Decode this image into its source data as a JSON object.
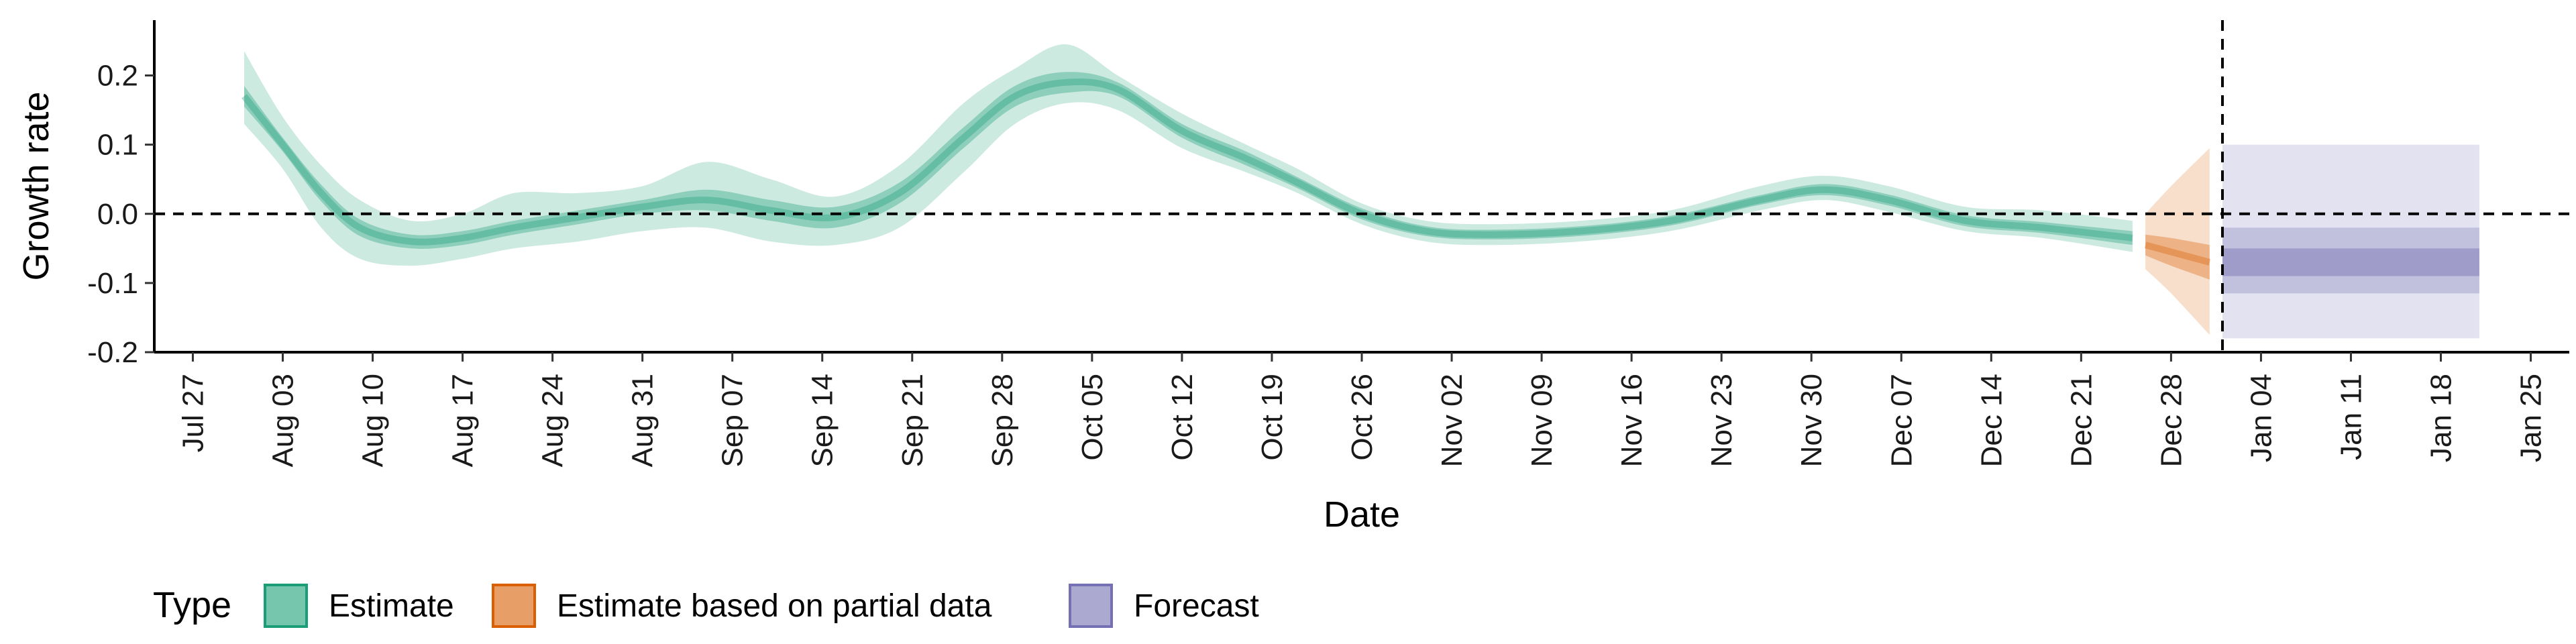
{
  "chart_data": {
    "type": "area",
    "xlabel": "Date",
    "ylabel": "Growth rate",
    "ylim": [
      -0.2,
      0.28
    ],
    "yticks": [
      -0.2,
      -0.1,
      0.0,
      0.1,
      0.2
    ],
    "ytick_labels": [
      "-0.2",
      "-0.1",
      "0.0",
      "0.1",
      "0.2"
    ],
    "xlim": [
      "2020-07-24",
      "2021-01-28"
    ],
    "xticks": [
      "2020-07-27",
      "2020-08-03",
      "2020-08-10",
      "2020-08-17",
      "2020-08-24",
      "2020-08-31",
      "2020-09-07",
      "2020-09-14",
      "2020-09-21",
      "2020-09-28",
      "2020-10-05",
      "2020-10-12",
      "2020-10-19",
      "2020-10-26",
      "2020-11-02",
      "2020-11-09",
      "2020-11-16",
      "2020-11-23",
      "2020-11-30",
      "2020-12-07",
      "2020-12-14",
      "2020-12-21",
      "2020-12-28",
      "2021-01-04",
      "2021-01-11",
      "2021-01-18",
      "2021-01-25"
    ],
    "xtick_labels": [
      "Jul 27",
      "Aug 03",
      "Aug 10",
      "Aug 17",
      "Aug 24",
      "Aug 31",
      "Sep 07",
      "Sep 14",
      "Sep 21",
      "Sep 28",
      "Oct 05",
      "Oct 12",
      "Oct 19",
      "Oct 26",
      "Nov 02",
      "Nov 09",
      "Nov 16",
      "Nov 23",
      "Nov 30",
      "Dec 07",
      "Dec 14",
      "Dec 21",
      "Dec 28",
      "Jan 04",
      "Jan 11",
      "Jan 18",
      "Jan 25"
    ],
    "reference_lines": {
      "horizontal_y": 0.0,
      "vertical_date": "2021-01-01"
    },
    "grid": false,
    "legend_position": "bottom-left",
    "legend_title": "Type",
    "series": [
      {
        "name": "Estimate",
        "color": "#1b9e77",
        "points": [
          {
            "date": "2020-07-31",
            "median": 0.17,
            "lo50": 0.155,
            "hi50": 0.185,
            "lo90": 0.13,
            "hi90": 0.235
          },
          {
            "date": "2020-08-03",
            "median": 0.1,
            "lo50": 0.09,
            "hi50": 0.11,
            "lo90": 0.065,
            "hi90": 0.14
          },
          {
            "date": "2020-08-06",
            "median": 0.03,
            "lo50": 0.018,
            "hi50": 0.042,
            "lo90": -0.02,
            "hi90": 0.07
          },
          {
            "date": "2020-08-09",
            "median": -0.02,
            "lo50": -0.032,
            "hi50": -0.008,
            "lo90": -0.065,
            "hi90": 0.02
          },
          {
            "date": "2020-08-13",
            "median": -0.04,
            "lo50": -0.05,
            "hi50": -0.03,
            "lo90": -0.075,
            "hi90": -0.01
          },
          {
            "date": "2020-08-17",
            "median": -0.035,
            "lo50": -0.045,
            "hi50": -0.025,
            "lo90": -0.065,
            "hi90": 0.0
          },
          {
            "date": "2020-08-21",
            "median": -0.02,
            "lo50": -0.03,
            "hi50": -0.01,
            "lo90": -0.05,
            "hi90": 0.03
          },
          {
            "date": "2020-08-26",
            "median": -0.005,
            "lo50": -0.015,
            "hi50": 0.005,
            "lo90": -0.04,
            "hi90": 0.03
          },
          {
            "date": "2020-08-31",
            "median": 0.01,
            "lo50": 0.0,
            "hi50": 0.02,
            "lo90": -0.025,
            "hi90": 0.04
          },
          {
            "date": "2020-09-05",
            "median": 0.02,
            "lo50": 0.005,
            "hi50": 0.035,
            "lo90": -0.02,
            "hi90": 0.075
          },
          {
            "date": "2020-09-10",
            "median": 0.005,
            "lo50": -0.01,
            "hi50": 0.02,
            "lo90": -0.04,
            "hi90": 0.05
          },
          {
            "date": "2020-09-15",
            "median": -0.005,
            "lo50": -0.02,
            "hi50": 0.01,
            "lo90": -0.045,
            "hi90": 0.025
          },
          {
            "date": "2020-09-20",
            "median": 0.03,
            "lo50": 0.015,
            "hi50": 0.045,
            "lo90": -0.02,
            "hi90": 0.07
          },
          {
            "date": "2020-09-25",
            "median": 0.11,
            "lo50": 0.095,
            "hi50": 0.125,
            "lo90": 0.06,
            "hi90": 0.16
          },
          {
            "date": "2020-09-29",
            "median": 0.17,
            "lo50": 0.155,
            "hi50": 0.185,
            "lo90": 0.13,
            "hi90": 0.21
          },
          {
            "date": "2020-10-03",
            "median": 0.19,
            "lo50": 0.175,
            "hi50": 0.205,
            "lo90": 0.16,
            "hi90": 0.245
          },
          {
            "date": "2020-10-07",
            "median": 0.18,
            "lo50": 0.17,
            "hi50": 0.19,
            "lo90": 0.15,
            "hi90": 0.2
          },
          {
            "date": "2020-10-12",
            "median": 0.12,
            "lo50": 0.11,
            "hi50": 0.13,
            "lo90": 0.095,
            "hi90": 0.145
          },
          {
            "date": "2020-10-17",
            "median": 0.08,
            "lo50": 0.07,
            "hi50": 0.09,
            "lo90": 0.06,
            "hi90": 0.1
          },
          {
            "date": "2020-10-21",
            "median": 0.045,
            "lo50": 0.037,
            "hi50": 0.053,
            "lo90": 0.03,
            "hi90": 0.065
          },
          {
            "date": "2020-10-26",
            "median": 0.0,
            "lo50": -0.008,
            "hi50": 0.008,
            "lo90": -0.015,
            "hi90": 0.015
          },
          {
            "date": "2020-10-31",
            "median": -0.025,
            "lo50": -0.032,
            "hi50": -0.018,
            "lo90": -0.04,
            "hi90": -0.01
          },
          {
            "date": "2020-11-05",
            "median": -0.03,
            "lo50": -0.037,
            "hi50": -0.023,
            "lo90": -0.045,
            "hi90": -0.015
          },
          {
            "date": "2020-11-12",
            "median": -0.025,
            "lo50": -0.032,
            "hi50": -0.018,
            "lo90": -0.04,
            "hi90": -0.01
          },
          {
            "date": "2020-11-19",
            "median": -0.01,
            "lo50": -0.017,
            "hi50": -0.003,
            "lo90": -0.025,
            "hi90": 0.005
          },
          {
            "date": "2020-11-26",
            "median": 0.02,
            "lo50": 0.013,
            "hi50": 0.027,
            "lo90": 0.005,
            "hi90": 0.04
          },
          {
            "date": "2020-12-01",
            "median": 0.035,
            "lo50": 0.027,
            "hi50": 0.043,
            "lo90": 0.02,
            "hi90": 0.055
          },
          {
            "date": "2020-12-06",
            "median": 0.02,
            "lo50": 0.012,
            "hi50": 0.028,
            "lo90": 0.003,
            "hi90": 0.04
          },
          {
            "date": "2020-12-12",
            "median": -0.01,
            "lo50": -0.018,
            "hi50": -0.002,
            "lo90": -0.025,
            "hi90": 0.01
          },
          {
            "date": "2020-12-18",
            "median": -0.02,
            "lo50": -0.028,
            "hi50": -0.012,
            "lo90": -0.035,
            "hi90": 0.005
          },
          {
            "date": "2020-12-25",
            "median": -0.035,
            "lo50": -0.045,
            "hi50": -0.025,
            "lo90": -0.055,
            "hi90": -0.01
          }
        ]
      },
      {
        "name": "Estimate based on partial data",
        "color": "#d95f02",
        "points": [
          {
            "date": "2020-12-26",
            "median": -0.045,
            "lo50": -0.06,
            "hi50": -0.03,
            "lo90": -0.08,
            "hi90": 0.0
          },
          {
            "date": "2020-12-28",
            "median": -0.055,
            "lo50": -0.075,
            "hi50": -0.035,
            "lo90": -0.115,
            "hi90": 0.04
          },
          {
            "date": "2020-12-31",
            "median": -0.07,
            "lo50": -0.095,
            "hi50": -0.045,
            "lo90": -0.175,
            "hi90": 0.095
          }
        ]
      },
      {
        "name": "Forecast",
        "color": "#7570b3",
        "band": {
          "start": "2021-01-01",
          "end": "2021-01-21",
          "lo90": -0.18,
          "hi90": 0.1,
          "lo50": -0.115,
          "hi50": -0.02,
          "lo20": -0.09,
          "hi20": -0.05
        }
      }
    ]
  }
}
